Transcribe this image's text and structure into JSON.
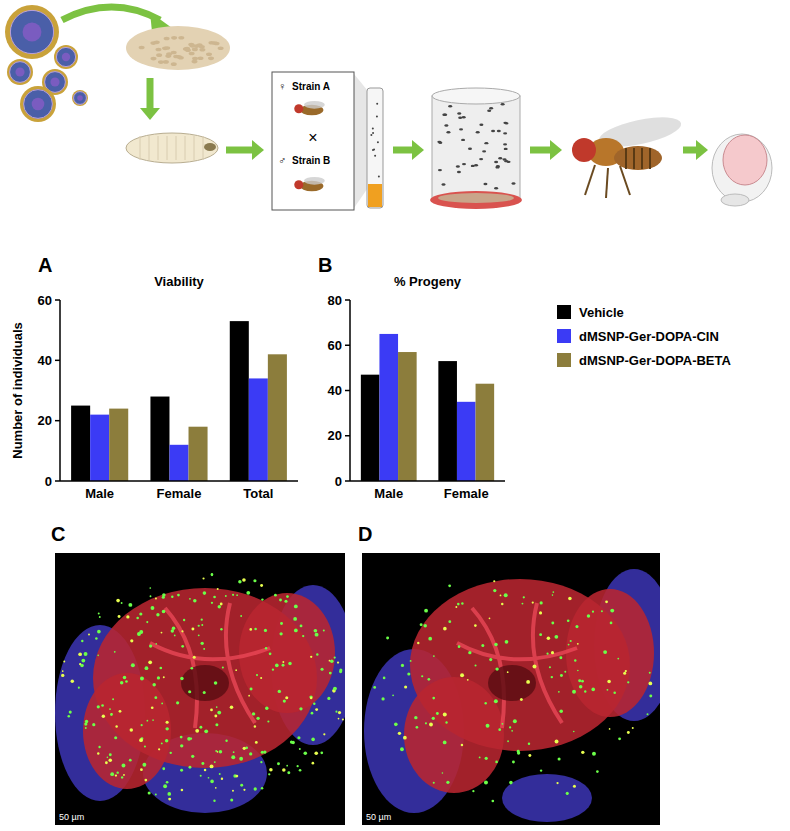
{
  "schematic": {
    "female_symbol": "♀",
    "female_strain": "Strain A",
    "cross": "×",
    "male_symbol": "♂",
    "male_strain": "Strain B"
  },
  "chart_data": [
    {
      "type": "bar",
      "panel_label": "A",
      "title": "Viability",
      "y_label": "Number of individuals",
      "categories": [
        "Male",
        "Female",
        "Total"
      ],
      "series": [
        {
          "color": "#000000",
          "values": [
            25,
            28,
            53
          ]
        },
        {
          "color": "#3b3bf5",
          "values": [
            22,
            12,
            34
          ]
        },
        {
          "color": "#8c7d3c",
          "values": [
            24,
            18,
            42
          ]
        }
      ],
      "ylim": [
        0,
        60
      ],
      "yticks": [
        0,
        20,
        40,
        60
      ],
      "grid": false
    },
    {
      "type": "bar",
      "panel_label": "B",
      "title": "% Progeny",
      "categories": [
        "Male",
        "Female"
      ],
      "series": [
        {
          "name": "Vehicle",
          "color": "#000000",
          "values": [
            47,
            53
          ]
        },
        {
          "name": "dMSNP-Ger-DOPA-CIN",
          "color": "#3b3bf5",
          "values": [
            65,
            35
          ]
        },
        {
          "name": "dMSNP-Ger-DOPA-BETA",
          "color": "#8c7d3c",
          "values": [
            57,
            43
          ]
        }
      ],
      "ylim": [
        0,
        80
      ],
      "yticks": [
        0,
        20,
        40,
        60,
        80
      ],
      "grid": false,
      "legend": "right"
    }
  ],
  "images": [
    {
      "panel_label": "C",
      "scale_bar": "50 µm"
    },
    {
      "panel_label": "D",
      "scale_bar": "50 µm"
    }
  ]
}
